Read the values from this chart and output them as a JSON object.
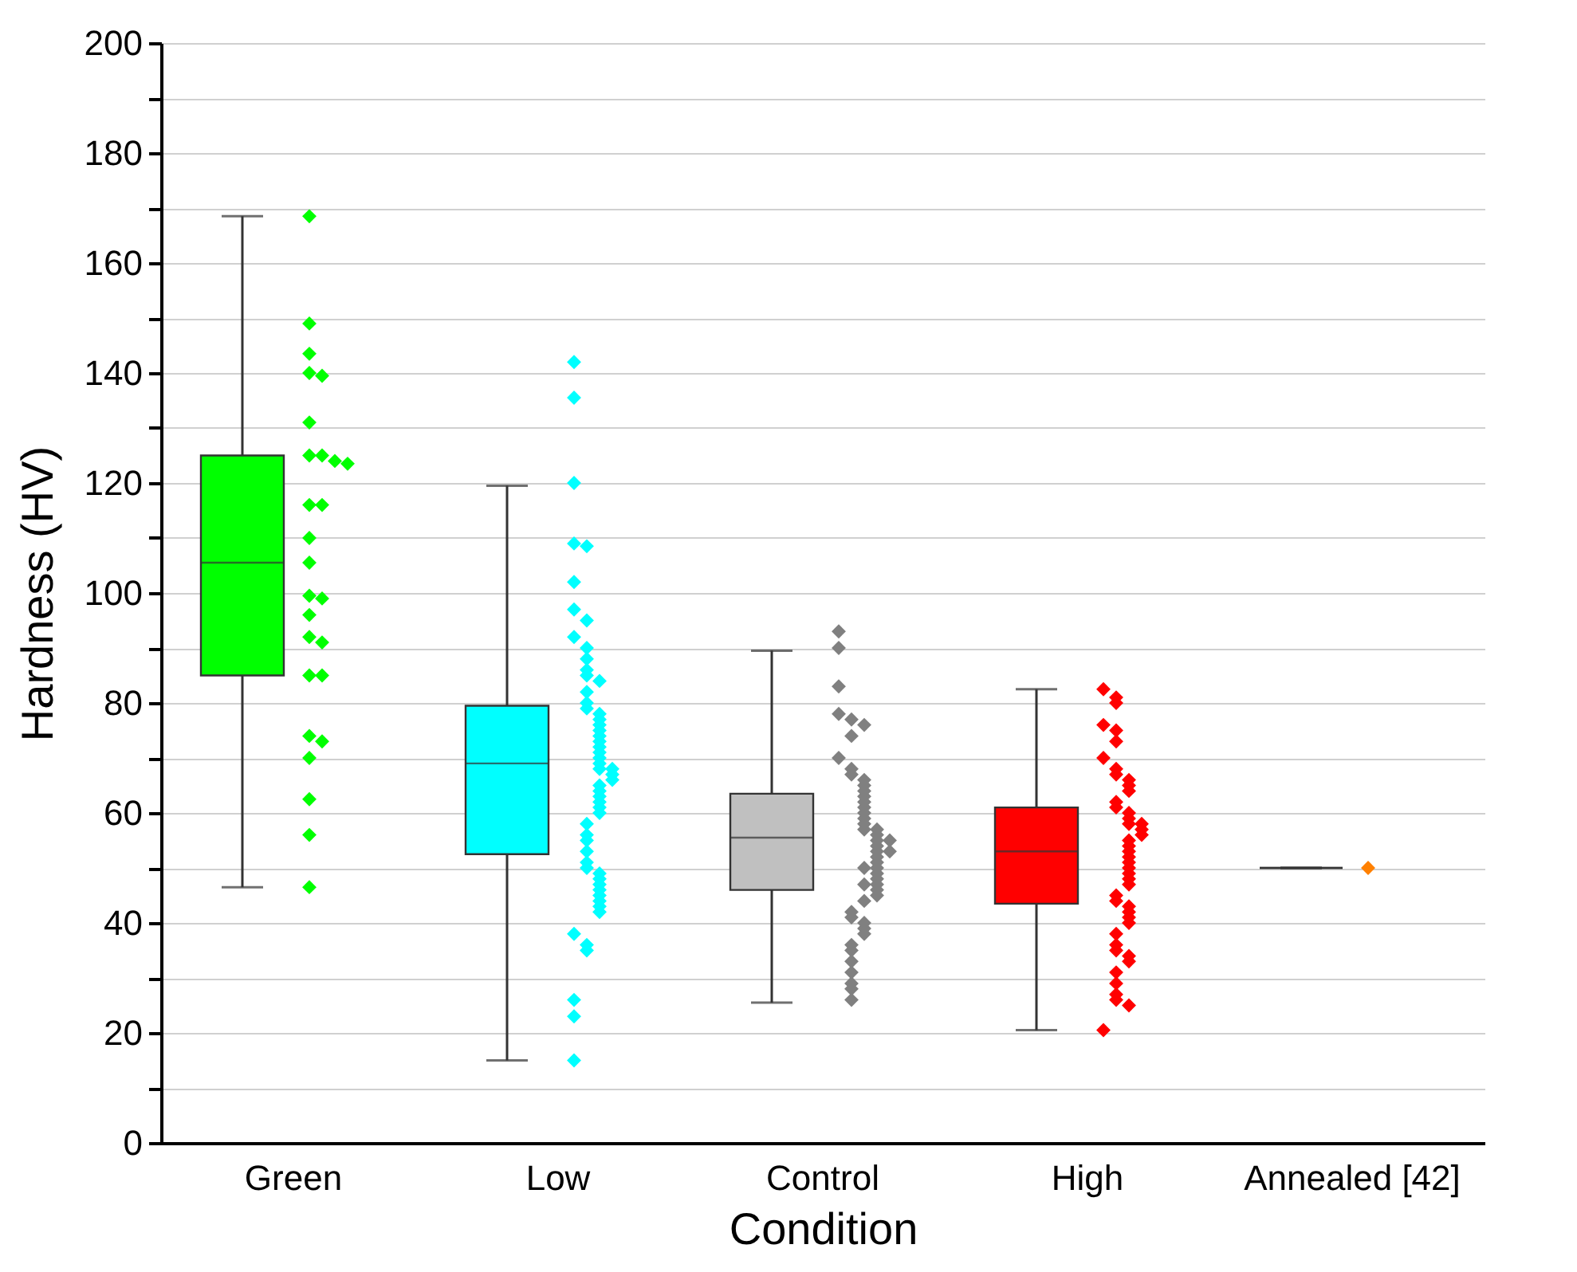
{
  "chart_data": {
    "type": "box",
    "xlabel": "Condition",
    "ylabel": "Hardness (HV)",
    "categories": [
      "Green",
      "Low",
      "Control",
      "High",
      "Annealed [42]"
    ],
    "colors": [
      "#00ff00",
      "#00ffff",
      "#c0c0c0",
      "#ff0000",
      "#333333"
    ],
    "boxes": [
      {
        "low": 46.5,
        "q1": 85,
        "median": 105.5,
        "q3": 125,
        "high": 168.5
      },
      {
        "low": 15,
        "q1": 52.5,
        "median": 69,
        "q3": 79.5,
        "high": 119.5
      },
      {
        "low": 25.5,
        "q1": 46,
        "median": 55.5,
        "q3": 63.5,
        "high": 89.5
      },
      {
        "low": 20.5,
        "q1": 43.5,
        "median": 53,
        "q3": 61,
        "high": 82.5
      },
      {
        "low": 50,
        "q1": 50,
        "median": 50,
        "q3": 50,
        "high": 50
      }
    ],
    "series": [
      {
        "type": "scatter",
        "color": "#00ff00",
        "x": [
          "Green",
          "Green",
          "Green",
          "Green",
          "Green",
          "Green",
          "Green",
          "Green",
          "Green",
          "Green",
          "Green",
          "Green",
          "Green",
          "Green",
          "Green",
          "Green",
          "Green",
          "Green",
          "Green",
          "Green",
          "Green",
          "Green",
          "Green",
          "Green",
          "Green",
          "Green",
          "Green"
        ],
        "values": [
          168.5,
          149,
          143.5,
          140,
          139.5,
          131,
          125,
          125,
          124,
          123.5,
          116,
          116,
          110,
          105.5,
          99.5,
          99,
          96,
          92,
          91,
          85,
          85,
          74,
          73,
          70,
          62.5,
          56,
          46.5
        ]
      },
      {
        "type": "scatter",
        "color": "#00ffff",
        "x": [
          "Low",
          "Low",
          "Low",
          "Low",
          "Low",
          "Low",
          "Low",
          "Low",
          "Low",
          "Low",
          "Low",
          "Low",
          "Low",
          "Low",
          "Low",
          "Low",
          "Low",
          "Low",
          "Low",
          "Low",
          "Low",
          "Low",
          "Low",
          "Low",
          "Low",
          "Low",
          "Low",
          "Low",
          "Low",
          "Low",
          "Low",
          "Low",
          "Low",
          "Low",
          "Low",
          "Low",
          "Low",
          "Low",
          "Low",
          "Low",
          "Low",
          "Low",
          "Low",
          "Low",
          "Low",
          "Low",
          "Low",
          "Low",
          "Low",
          "Low",
          "Low",
          "Low",
          "Low",
          "Low",
          "Low",
          "Low",
          "Low"
        ],
        "values": [
          142,
          135.5,
          120,
          109,
          108.5,
          102,
          97,
          95,
          92,
          90,
          88,
          86,
          85,
          84,
          82,
          80,
          79,
          78,
          77,
          76,
          75,
          74,
          73,
          72,
          71,
          70,
          69,
          68,
          68,
          67,
          66,
          65,
          64,
          63,
          62,
          61,
          60,
          58,
          56,
          55,
          53,
          51,
          50,
          49,
          48,
          47,
          46,
          45,
          44,
          43,
          42,
          38,
          36,
          35,
          26,
          23,
          15
        ]
      },
      {
        "type": "scatter",
        "color": "#808080",
        "x": [
          "Control",
          "Control",
          "Control",
          "Control",
          "Control",
          "Control",
          "Control",
          "Control",
          "Control",
          "Control",
          "Control",
          "Control",
          "Control",
          "Control",
          "Control",
          "Control",
          "Control",
          "Control",
          "Control",
          "Control",
          "Control",
          "Control",
          "Control",
          "Control",
          "Control",
          "Control",
          "Control",
          "Control",
          "Control",
          "Control",
          "Control",
          "Control",
          "Control",
          "Control",
          "Control",
          "Control",
          "Control",
          "Control",
          "Control",
          "Control",
          "Control",
          "Control",
          "Control",
          "Control",
          "Control",
          "Control",
          "Control",
          "Control",
          "Control",
          "Control"
        ],
        "values": [
          93,
          90,
          83,
          78,
          77,
          76,
          74,
          70,
          68,
          67,
          66,
          65,
          64,
          63,
          62,
          61,
          60,
          59,
          58,
          57,
          57,
          56,
          55,
          55,
          54,
          53,
          53,
          52,
          51,
          50,
          50,
          49,
          48,
          47,
          47,
          46,
          45,
          44,
          42,
          41,
          40,
          39,
          38,
          36,
          35,
          33,
          31,
          29,
          28,
          26
        ]
      },
      {
        "type": "scatter",
        "color": "#ff0000",
        "x": [
          "High",
          "High",
          "High",
          "High",
          "High",
          "High",
          "High",
          "High",
          "High",
          "High",
          "High",
          "High",
          "High",
          "High",
          "High",
          "High",
          "High",
          "High",
          "High",
          "High",
          "High",
          "High",
          "High",
          "High",
          "High",
          "High",
          "High",
          "High",
          "High",
          "High",
          "High",
          "High",
          "High",
          "High",
          "High",
          "High",
          "High",
          "High",
          "High",
          "High",
          "High",
          "High",
          "High",
          "High",
          "High",
          "High"
        ],
        "values": [
          82.5,
          81,
          80,
          76,
          75,
          73,
          70,
          68,
          67,
          66,
          65,
          64,
          62,
          61,
          60,
          59,
          58,
          58,
          57,
          56,
          55,
          54,
          53,
          52,
          51,
          50,
          49,
          48,
          47,
          45,
          44,
          43,
          42,
          41,
          40,
          38,
          36,
          35,
          34,
          33,
          31,
          29,
          27,
          26,
          25,
          20.5
        ]
      },
      {
        "type": "scatter",
        "color": "#ff8000",
        "x": [
          "Annealed [42]"
        ],
        "values": [
          50
        ]
      }
    ],
    "ylim": [
      0,
      200
    ],
    "yticks": [
      0,
      {
        "value": 10,
        "label": null
      },
      20,
      {
        "value": 30,
        "label": null
      },
      40,
      {
        "value": 50,
        "label": null
      },
      60,
      {
        "value": 70,
        "label": null
      },
      80,
      {
        "value": 90,
        "label": null
      },
      100,
      {
        "value": 110,
        "label": null
      },
      120,
      {
        "value": 130,
        "label": null
      },
      140,
      {
        "value": 150,
        "label": null
      },
      160,
      {
        "value": 170,
        "label": null
      },
      180,
      {
        "value": 190,
        "label": null
      },
      200
    ],
    "grid": "y",
    "marker": "diamond"
  }
}
